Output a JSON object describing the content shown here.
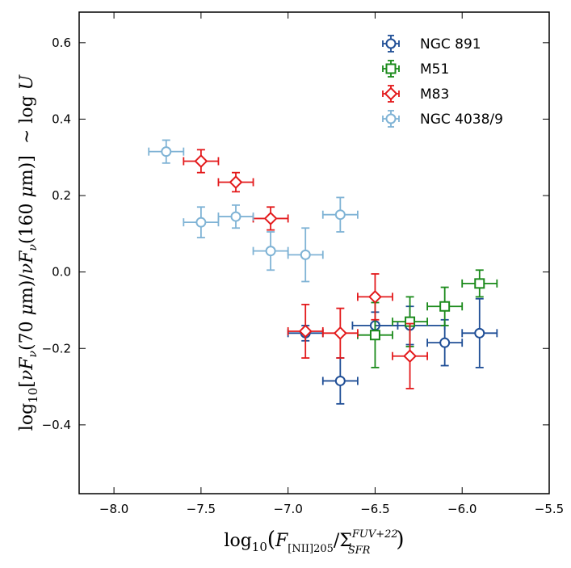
{
  "chart_data": {
    "type": "scatter",
    "title": "",
    "xlabel": {
      "prefix": "log",
      "sub": "10",
      "open": "(",
      "F": "F",
      "Fsub": "[NII]205",
      "slash": "/",
      "Sigma": "Σ",
      "Ssub": "SFR",
      "Ssup": "FUV+22",
      "close": ")"
    },
    "ylabel": {
      "prefix": "log",
      "sub": "10",
      "open": "[",
      "nu1": "ν",
      "F1": "F",
      "F1sub": "ν",
      "num": "(70 ",
      "mu1": "μ",
      "unit1": "m)",
      "slash": "/",
      "nu2": "ν",
      "F2": "F",
      "F2sub": "ν",
      "den": "(160 ",
      "mu2": "μ",
      "unit2": "m)",
      "close": "]",
      "approx": "∼ log ",
      "U": "U"
    },
    "xlim": [
      -8.2,
      -5.5
    ],
    "ylim": [
      -0.58,
      0.68
    ],
    "xticks": [
      -8.0,
      -7.5,
      -7.0,
      -6.5,
      -6.0,
      -5.5
    ],
    "yticks": [
      -0.4,
      -0.2,
      0.0,
      0.2,
      0.4,
      0.6
    ],
    "xtick_labels": [
      "−8.0",
      "−7.5",
      "−7.0",
      "−6.5",
      "−6.0",
      "−5.5"
    ],
    "ytick_labels": [
      "−0.4",
      "−0.2",
      "0.0",
      "0.2",
      "0.4",
      "0.6"
    ],
    "legend_position": "top-right",
    "series": [
      {
        "name": "NGC 891",
        "marker": "circle",
        "color": "#1f4e96",
        "points": [
          {
            "x": -6.9,
            "y": -0.16,
            "xerr": 0.1,
            "yerr": 0.02
          },
          {
            "x": -6.7,
            "y": -0.285,
            "xerr": 0.1,
            "yerr": 0.06
          },
          {
            "x": -6.5,
            "y": -0.14,
            "xerr": 0.13,
            "yerr": 0.035
          },
          {
            "x": -6.3,
            "y": -0.14,
            "xerr": 0.2,
            "yerr": 0.05
          },
          {
            "x": -6.1,
            "y": -0.185,
            "xerr": 0.1,
            "yerr": 0.06
          },
          {
            "x": -5.9,
            "y": -0.16,
            "xerr": 0.1,
            "yerr": 0.09
          }
        ]
      },
      {
        "name": "M51",
        "marker": "square",
        "color": "#1a8a1a",
        "points": [
          {
            "x": -6.5,
            "y": -0.165,
            "xerr": 0.1,
            "yerr": 0.085
          },
          {
            "x": -6.3,
            "y": -0.13,
            "xerr": 0.1,
            "yerr": 0.065
          },
          {
            "x": -6.1,
            "y": -0.09,
            "xerr": 0.1,
            "yerr": 0.05
          },
          {
            "x": -5.9,
            "y": -0.03,
            "xerr": 0.1,
            "yerr": 0.035
          }
        ]
      },
      {
        "name": "M83",
        "marker": "diamond",
        "color": "#e31a1c",
        "points": [
          {
            "x": -7.5,
            "y": 0.29,
            "xerr": 0.1,
            "yerr": 0.03
          },
          {
            "x": -7.3,
            "y": 0.235,
            "xerr": 0.1,
            "yerr": 0.025
          },
          {
            "x": -7.1,
            "y": 0.14,
            "xerr": 0.1,
            "yerr": 0.03
          },
          {
            "x": -6.9,
            "y": -0.155,
            "xerr": 0.1,
            "yerr": 0.07
          },
          {
            "x": -6.7,
            "y": -0.16,
            "xerr": 0.1,
            "yerr": 0.065
          },
          {
            "x": -6.5,
            "y": -0.065,
            "xerr": 0.1,
            "yerr": 0.06
          },
          {
            "x": -6.3,
            "y": -0.22,
            "xerr": 0.1,
            "yerr": 0.085
          }
        ]
      },
      {
        "name": "NGC 4038/9",
        "marker": "circle",
        "color": "#7fb3d5",
        "points": [
          {
            "x": -7.7,
            "y": 0.315,
            "xerr": 0.1,
            "yerr": 0.03
          },
          {
            "x": -7.5,
            "y": 0.13,
            "xerr": 0.1,
            "yerr": 0.04
          },
          {
            "x": -7.3,
            "y": 0.145,
            "xerr": 0.1,
            "yerr": 0.03
          },
          {
            "x": -7.1,
            "y": 0.055,
            "xerr": 0.1,
            "yerr": 0.05
          },
          {
            "x": -6.9,
            "y": 0.045,
            "xerr": 0.1,
            "yerr": 0.07
          },
          {
            "x": -6.7,
            "y": 0.15,
            "xerr": 0.1,
            "yerr": 0.045
          }
        ]
      }
    ]
  }
}
